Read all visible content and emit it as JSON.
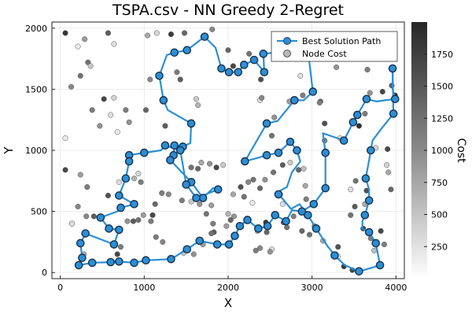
{
  "chart_data": {
    "type": "scatter",
    "title": "TSPA.csv - NN Greedy 2-Regret",
    "xlabel": "X",
    "ylabel": "Y",
    "xlim": [
      -100,
      4100
    ],
    "ylim": [
      -50,
      2050
    ],
    "xticks": [
      0,
      1000,
      2000,
      3000,
      4000
    ],
    "xtick_labels": [
      "0",
      "1000",
      "2000",
      "3000",
      "4000"
    ],
    "yticks": [
      0,
      500,
      1000,
      1500,
      2000
    ],
    "ytick_labels": [
      "0",
      "500",
      "1000",
      "1500",
      "2000"
    ],
    "grid": true,
    "legend": {
      "position": "top-right",
      "entries": [
        {
          "label": "Best Solution Path",
          "kind": "path"
        },
        {
          "label": "Node Cost",
          "kind": "node"
        }
      ]
    },
    "colorbar": {
      "label": "Cost",
      "range": [
        0,
        2000
      ],
      "ticks": [
        250,
        500,
        750,
        1000,
        1250,
        1500,
        1750
      ],
      "tick_labels": [
        "250",
        "500",
        "750",
        "1000",
        "1250",
        "1500",
        "1750"
      ]
    },
    "path_color": "#2b8fd6",
    "path": [
      [
        220,
        60
      ],
      [
        380,
        80
      ],
      [
        600,
        85
      ],
      [
        700,
        90
      ],
      [
        880,
        80
      ],
      [
        1020,
        100
      ],
      [
        1320,
        110
      ],
      [
        1510,
        190
      ],
      [
        1660,
        260
      ],
      [
        1870,
        230
      ],
      [
        2010,
        230
      ],
      [
        2080,
        300
      ],
      [
        2140,
        380
      ],
      [
        2230,
        430
      ],
      [
        2360,
        360
      ],
      [
        2470,
        380
      ],
      [
        2560,
        470
      ],
      [
        2690,
        420
      ],
      [
        2760,
        510
      ],
      [
        2880,
        500
      ],
      [
        3020,
        560
      ],
      [
        3160,
        690
      ],
      [
        3160,
        980
      ],
      [
        3130,
        1140
      ],
      [
        3300,
        1100
      ],
      [
        3380,
        1080
      ],
      [
        3490,
        1230
      ],
      [
        3540,
        1290
      ],
      [
        3650,
        1420
      ],
      [
        3770,
        1400
      ],
      [
        3870,
        1410
      ],
      [
        3990,
        1420
      ],
      [
        3960,
        1500
      ],
      [
        3960,
        1670
      ],
      [
        3970,
        1300
      ],
      [
        3830,
        1180
      ],
      [
        3720,
        1080
      ],
      [
        3700,
        1000
      ],
      [
        3680,
        920
      ],
      [
        3640,
        770
      ],
      [
        3680,
        680
      ],
      [
        3680,
        590
      ],
      [
        3630,
        470
      ],
      [
        3600,
        420
      ],
      [
        3600,
        360
      ],
      [
        3680,
        330
      ],
      [
        3760,
        240
      ],
      [
        3810,
        60
      ],
      [
        3620,
        20
      ],
      [
        3560,
        10
      ],
      [
        3390,
        60
      ],
      [
        3270,
        140
      ],
      [
        3180,
        220
      ],
      [
        3050,
        360
      ],
      [
        2950,
        470
      ],
      [
        2850,
        560
      ],
      [
        2750,
        520
      ],
      [
        2640,
        610
      ],
      [
        2600,
        640
      ],
      [
        2620,
        670
      ],
      [
        2700,
        700
      ],
      [
        2730,
        760
      ],
      [
        2760,
        820
      ],
      [
        2860,
        910
      ],
      [
        2820,
        1000
      ],
      [
        2740,
        1070
      ],
      [
        2600,
        980
      ],
      [
        2460,
        960
      ],
      [
        2360,
        940
      ],
      [
        2200,
        910
      ],
      [
        2460,
        1220
      ],
      [
        2590,
        1240
      ],
      [
        2790,
        1410
      ],
      [
        2900,
        1410
      ],
      [
        3010,
        1480
      ],
      [
        2950,
        1830
      ],
      [
        2420,
        1790
      ],
      [
        2430,
        1640
      ],
      [
        2310,
        1740
      ],
      [
        2190,
        1700
      ],
      [
        2120,
        1640
      ],
      [
        2010,
        1640
      ],
      [
        1920,
        1670
      ],
      [
        1850,
        1840
      ],
      [
        1720,
        1930
      ],
      [
        1510,
        1820
      ],
      [
        1360,
        1800
      ],
      [
        1270,
        1780
      ],
      [
        1180,
        1610
      ],
      [
        1230,
        1410
      ],
      [
        1280,
        1330
      ],
      [
        1560,
        1220
      ],
      [
        1550,
        1060
      ],
      [
        1460,
        1030
      ],
      [
        1360,
        1040
      ],
      [
        1350,
        960
      ],
      [
        1310,
        920
      ],
      [
        1560,
        740
      ],
      [
        1700,
        610
      ],
      [
        1820,
        690
      ],
      [
        1880,
        680
      ],
      [
        1620,
        610
      ],
      [
        1500,
        720
      ],
      [
        1430,
        1000
      ],
      [
        1250,
        1040
      ],
      [
        1200,
        1000
      ],
      [
        1000,
        980
      ],
      [
        820,
        960
      ],
      [
        820,
        910
      ],
      [
        780,
        770
      ],
      [
        700,
        630
      ],
      [
        880,
        560
      ],
      [
        720,
        530
      ],
      [
        680,
        500
      ],
      [
        480,
        450
      ],
      [
        580,
        360
      ],
      [
        700,
        350
      ],
      [
        640,
        230
      ],
      [
        300,
        320
      ],
      [
        240,
        240
      ],
      [
        260,
        120
      ]
    ],
    "path_nodes": [
      [
        220,
        60
      ],
      [
        380,
        80
      ],
      [
        600,
        85
      ],
      [
        700,
        90
      ],
      [
        880,
        80
      ],
      [
        1020,
        100
      ],
      [
        1320,
        110
      ],
      [
        1510,
        190
      ],
      [
        1660,
        260
      ],
      [
        1870,
        230
      ],
      [
        2010,
        230
      ],
      [
        2080,
        300
      ],
      [
        2140,
        380
      ],
      [
        2230,
        430
      ],
      [
        2360,
        360
      ],
      [
        2470,
        380
      ],
      [
        2560,
        470
      ],
      [
        2690,
        420
      ],
      [
        2880,
        500
      ],
      [
        3020,
        560
      ],
      [
        3160,
        690
      ],
      [
        3160,
        980
      ],
      [
        3380,
        1080
      ],
      [
        3490,
        1230
      ],
      [
        3540,
        1290
      ],
      [
        3650,
        1420
      ],
      [
        3960,
        1670
      ],
      [
        3990,
        1420
      ],
      [
        3970,
        1300
      ],
      [
        3700,
        1000
      ],
      [
        3640,
        770
      ],
      [
        3680,
        590
      ],
      [
        3630,
        470
      ],
      [
        3680,
        330
      ],
      [
        3760,
        240
      ],
      [
        3810,
        60
      ],
      [
        3560,
        10
      ],
      [
        3270,
        140
      ],
      [
        3050,
        360
      ],
      [
        2950,
        470
      ],
      [
        2600,
        640
      ],
      [
        2820,
        1000
      ],
      [
        2740,
        1070
      ],
      [
        2600,
        980
      ],
      [
        2460,
        960
      ],
      [
        2200,
        910
      ],
      [
        2460,
        1220
      ],
      [
        2790,
        1410
      ],
      [
        3010,
        1480
      ],
      [
        2420,
        1790
      ],
      [
        2430,
        1640
      ],
      [
        2310,
        1740
      ],
      [
        2190,
        1700
      ],
      [
        2120,
        1640
      ],
      [
        2010,
        1640
      ],
      [
        1920,
        1670
      ],
      [
        1720,
        1930
      ],
      [
        1510,
        1820
      ],
      [
        1360,
        1800
      ],
      [
        1180,
        1610
      ],
      [
        1230,
        1410
      ],
      [
        1560,
        1220
      ],
      [
        1460,
        1030
      ],
      [
        1360,
        1040
      ],
      [
        1350,
        960
      ],
      [
        1310,
        920
      ],
      [
        1560,
        740
      ],
      [
        1700,
        610
      ],
      [
        1880,
        680
      ],
      [
        1620,
        610
      ],
      [
        1500,
        720
      ],
      [
        1430,
        1000
      ],
      [
        1250,
        1040
      ],
      [
        1000,
        980
      ],
      [
        820,
        960
      ],
      [
        820,
        910
      ],
      [
        780,
        770
      ],
      [
        700,
        630
      ],
      [
        880,
        560
      ],
      [
        720,
        530
      ],
      [
        480,
        450
      ],
      [
        580,
        360
      ],
      [
        700,
        350
      ],
      [
        640,
        230
      ],
      [
        300,
        320
      ],
      [
        240,
        240
      ],
      [
        260,
        120
      ]
    ],
    "nodes": [
      [
        60,
        1960,
        1850
      ],
      [
        210,
        1850,
        200
      ],
      [
        290,
        1910,
        900
      ],
      [
        330,
        1720,
        1300
      ],
      [
        360,
        1690,
        500
      ],
      [
        570,
        1960,
        1500
      ],
      [
        640,
        1870,
        300
      ],
      [
        520,
        1420,
        1700
      ],
      [
        600,
        1290,
        300
      ],
      [
        680,
        1150,
        200
      ],
      [
        640,
        1430,
        400
      ],
      [
        470,
        1200,
        1000
      ],
      [
        380,
        1330,
        1200
      ],
      [
        240,
        1610,
        1300
      ],
      [
        130,
        1520,
        1100
      ],
      [
        60,
        1100,
        200
      ],
      [
        60,
        840,
        1700
      ],
      [
        240,
        800,
        900
      ],
      [
        320,
        700,
        1200
      ],
      [
        210,
        540,
        1100
      ],
      [
        140,
        400,
        1600
      ],
      [
        140,
        400,
        300
      ],
      [
        310,
        460,
        1100
      ],
      [
        280,
        150,
        800
      ],
      [
        400,
        460,
        1500
      ],
      [
        570,
        630,
        1600
      ],
      [
        700,
        740,
        300
      ],
      [
        880,
        770,
        700
      ],
      [
        930,
        810,
        400
      ],
      [
        960,
        740,
        1200
      ],
      [
        820,
        1230,
        1000
      ],
      [
        780,
        1330,
        1200
      ],
      [
        1070,
        1580,
        1100
      ],
      [
        1020,
        1330,
        1400
      ],
      [
        1250,
        1200,
        1500
      ],
      [
        1390,
        1640,
        1200
      ],
      [
        1430,
        1580,
        1500
      ],
      [
        1620,
        1420,
        500
      ],
      [
        1640,
        1370,
        700
      ],
      [
        1480,
        1960,
        1400
      ],
      [
        1150,
        1960,
        400
      ],
      [
        1040,
        1940,
        800
      ],
      [
        1320,
        1950,
        1800
      ],
      [
        1810,
        1990,
        1100
      ],
      [
        2000,
        1820,
        1400
      ],
      [
        2060,
        1690,
        1700
      ],
      [
        2250,
        1790,
        1300
      ],
      [
        2390,
        1580,
        1600
      ],
      [
        2380,
        1410,
        300
      ],
      [
        2400,
        1430,
        1100
      ],
      [
        2520,
        1120,
        1300
      ],
      [
        2550,
        1270,
        1000
      ],
      [
        2730,
        1400,
        900
      ],
      [
        2890,
        1450,
        1200
      ],
      [
        2860,
        1610,
        300
      ],
      [
        3020,
        1480,
        600
      ],
      [
        3290,
        1680,
        1000
      ],
      [
        3100,
        1400,
        1400
      ],
      [
        3090,
        1390,
        1200
      ],
      [
        3150,
        1220,
        1600
      ],
      [
        3150,
        1080,
        1200
      ],
      [
        3330,
        1100,
        300
      ],
      [
        3560,
        1200,
        1900
      ],
      [
        3630,
        1300,
        1200
      ],
      [
        3690,
        1470,
        1000
      ],
      [
        3840,
        1480,
        1700
      ],
      [
        3790,
        1780,
        1300
      ],
      [
        3660,
        1660,
        1200
      ],
      [
        3990,
        1450,
        1900
      ],
      [
        3950,
        1530,
        1500
      ],
      [
        3760,
        1020,
        400
      ],
      [
        3900,
        1010,
        1700
      ],
      [
        3890,
        880,
        400
      ],
      [
        3910,
        820,
        800
      ],
      [
        3940,
        680,
        1400
      ],
      [
        3650,
        670,
        1600
      ],
      [
        3520,
        750,
        1300
      ],
      [
        3460,
        680,
        300
      ],
      [
        3630,
        560,
        800
      ],
      [
        3510,
        540,
        1500
      ],
      [
        3460,
        470,
        1300
      ],
      [
        3610,
        360,
        1800
      ],
      [
        3700,
        280,
        1200
      ],
      [
        3820,
        340,
        1700
      ],
      [
        3860,
        230,
        1200
      ],
      [
        3740,
        180,
        600
      ],
      [
        3480,
        20,
        1700
      ],
      [
        3380,
        50,
        1800
      ],
      [
        3310,
        210,
        1600
      ],
      [
        3310,
        130,
        200
      ],
      [
        3130,
        260,
        800
      ],
      [
        3030,
        380,
        1100
      ],
      [
        2840,
        840,
        1400
      ],
      [
        2620,
        640,
        1500
      ],
      [
        2650,
        560,
        300
      ],
      [
        2660,
        410,
        1500
      ],
      [
        2460,
        330,
        1400
      ],
      [
        2350,
        340,
        700
      ],
      [
        2380,
        200,
        1100
      ],
      [
        2330,
        180,
        1200
      ],
      [
        2520,
        190,
        300
      ],
      [
        2500,
        170,
        1000
      ],
      [
        2240,
        740,
        1100
      ],
      [
        2290,
        570,
        200
      ],
      [
        2190,
        620,
        1300
      ],
      [
        2150,
        700,
        1600
      ],
      [
        2060,
        640,
        800
      ],
      [
        2070,
        460,
        1000
      ],
      [
        2030,
        430,
        1400
      ],
      [
        2000,
        480,
        700
      ],
      [
        1980,
        380,
        900
      ],
      [
        1830,
        330,
        1500
      ],
      [
        1820,
        400,
        1200
      ],
      [
        1740,
        480,
        1300
      ],
      [
        1800,
        550,
        900
      ],
      [
        1660,
        560,
        1000
      ],
      [
        1560,
        580,
        500
      ],
      [
        1450,
        590,
        1200
      ],
      [
        1290,
        640,
        1100
      ],
      [
        1210,
        650,
        1200
      ],
      [
        1130,
        560,
        1400
      ],
      [
        1100,
        470,
        1700
      ],
      [
        1080,
        420,
        1200
      ],
      [
        990,
        470,
        900
      ],
      [
        930,
        430,
        1300
      ],
      [
        870,
        420,
        1500
      ],
      [
        800,
        420,
        1000
      ],
      [
        720,
        210,
        1200
      ],
      [
        680,
        150,
        1700
      ],
      [
        1220,
        250,
        1100
      ],
      [
        1140,
        290,
        1200
      ],
      [
        1470,
        160,
        500
      ],
      [
        1590,
        150,
        1000
      ],
      [
        1700,
        230,
        900
      ],
      [
        1800,
        320,
        1300
      ],
      [
        2450,
        410,
        1800
      ],
      [
        2700,
        370,
        1300
      ],
      [
        2780,
        460,
        1200
      ],
      [
        2880,
        340,
        1400
      ],
      [
        2970,
        310,
        1300
      ],
      [
        2930,
        600,
        1200
      ],
      [
        2920,
        710,
        800
      ],
      [
        2900,
        850,
        600
      ],
      [
        2740,
        900,
        500
      ],
      [
        2650,
        880,
        1500
      ],
      [
        2540,
        820,
        1300
      ],
      [
        2440,
        760,
        1000
      ],
      [
        2380,
        690,
        1400
      ],
      [
        2300,
        760,
        1300
      ],
      [
        1940,
        880,
        500
      ],
      [
        1860,
        860,
        1700
      ],
      [
        1780,
        890,
        1000
      ],
      [
        1680,
        900,
        800
      ],
      [
        1640,
        850,
        1400
      ],
      [
        1560,
        860,
        1300
      ]
    ]
  }
}
